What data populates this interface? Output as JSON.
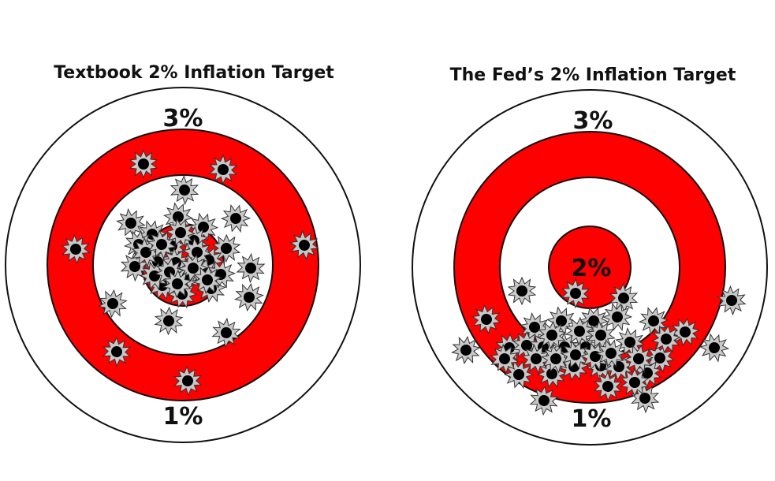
{
  "colors": {
    "background": "#ffffff",
    "ring_red": "#ff0000",
    "ring_white": "#ffffff",
    "outline": "#111111",
    "hole_fill": "#000000",
    "hole_burst": "#c8c8c8",
    "text": "#111111"
  },
  "targets": [
    {
      "id": "textbook",
      "title": "Textbook 2% Inflation Target",
      "top_label": "3%",
      "bottom_label": "1%",
      "center_label": "",
      "icon": "bullet-hole-icon",
      "hole_count": 40
    },
    {
      "id": "fed",
      "title": "The Fed’s 2% Inflation Target",
      "top_label": "3%",
      "bottom_label": "1%",
      "center_label": "2%",
      "icon": "bullet-hole-icon",
      "hole_count": 41
    }
  ]
}
